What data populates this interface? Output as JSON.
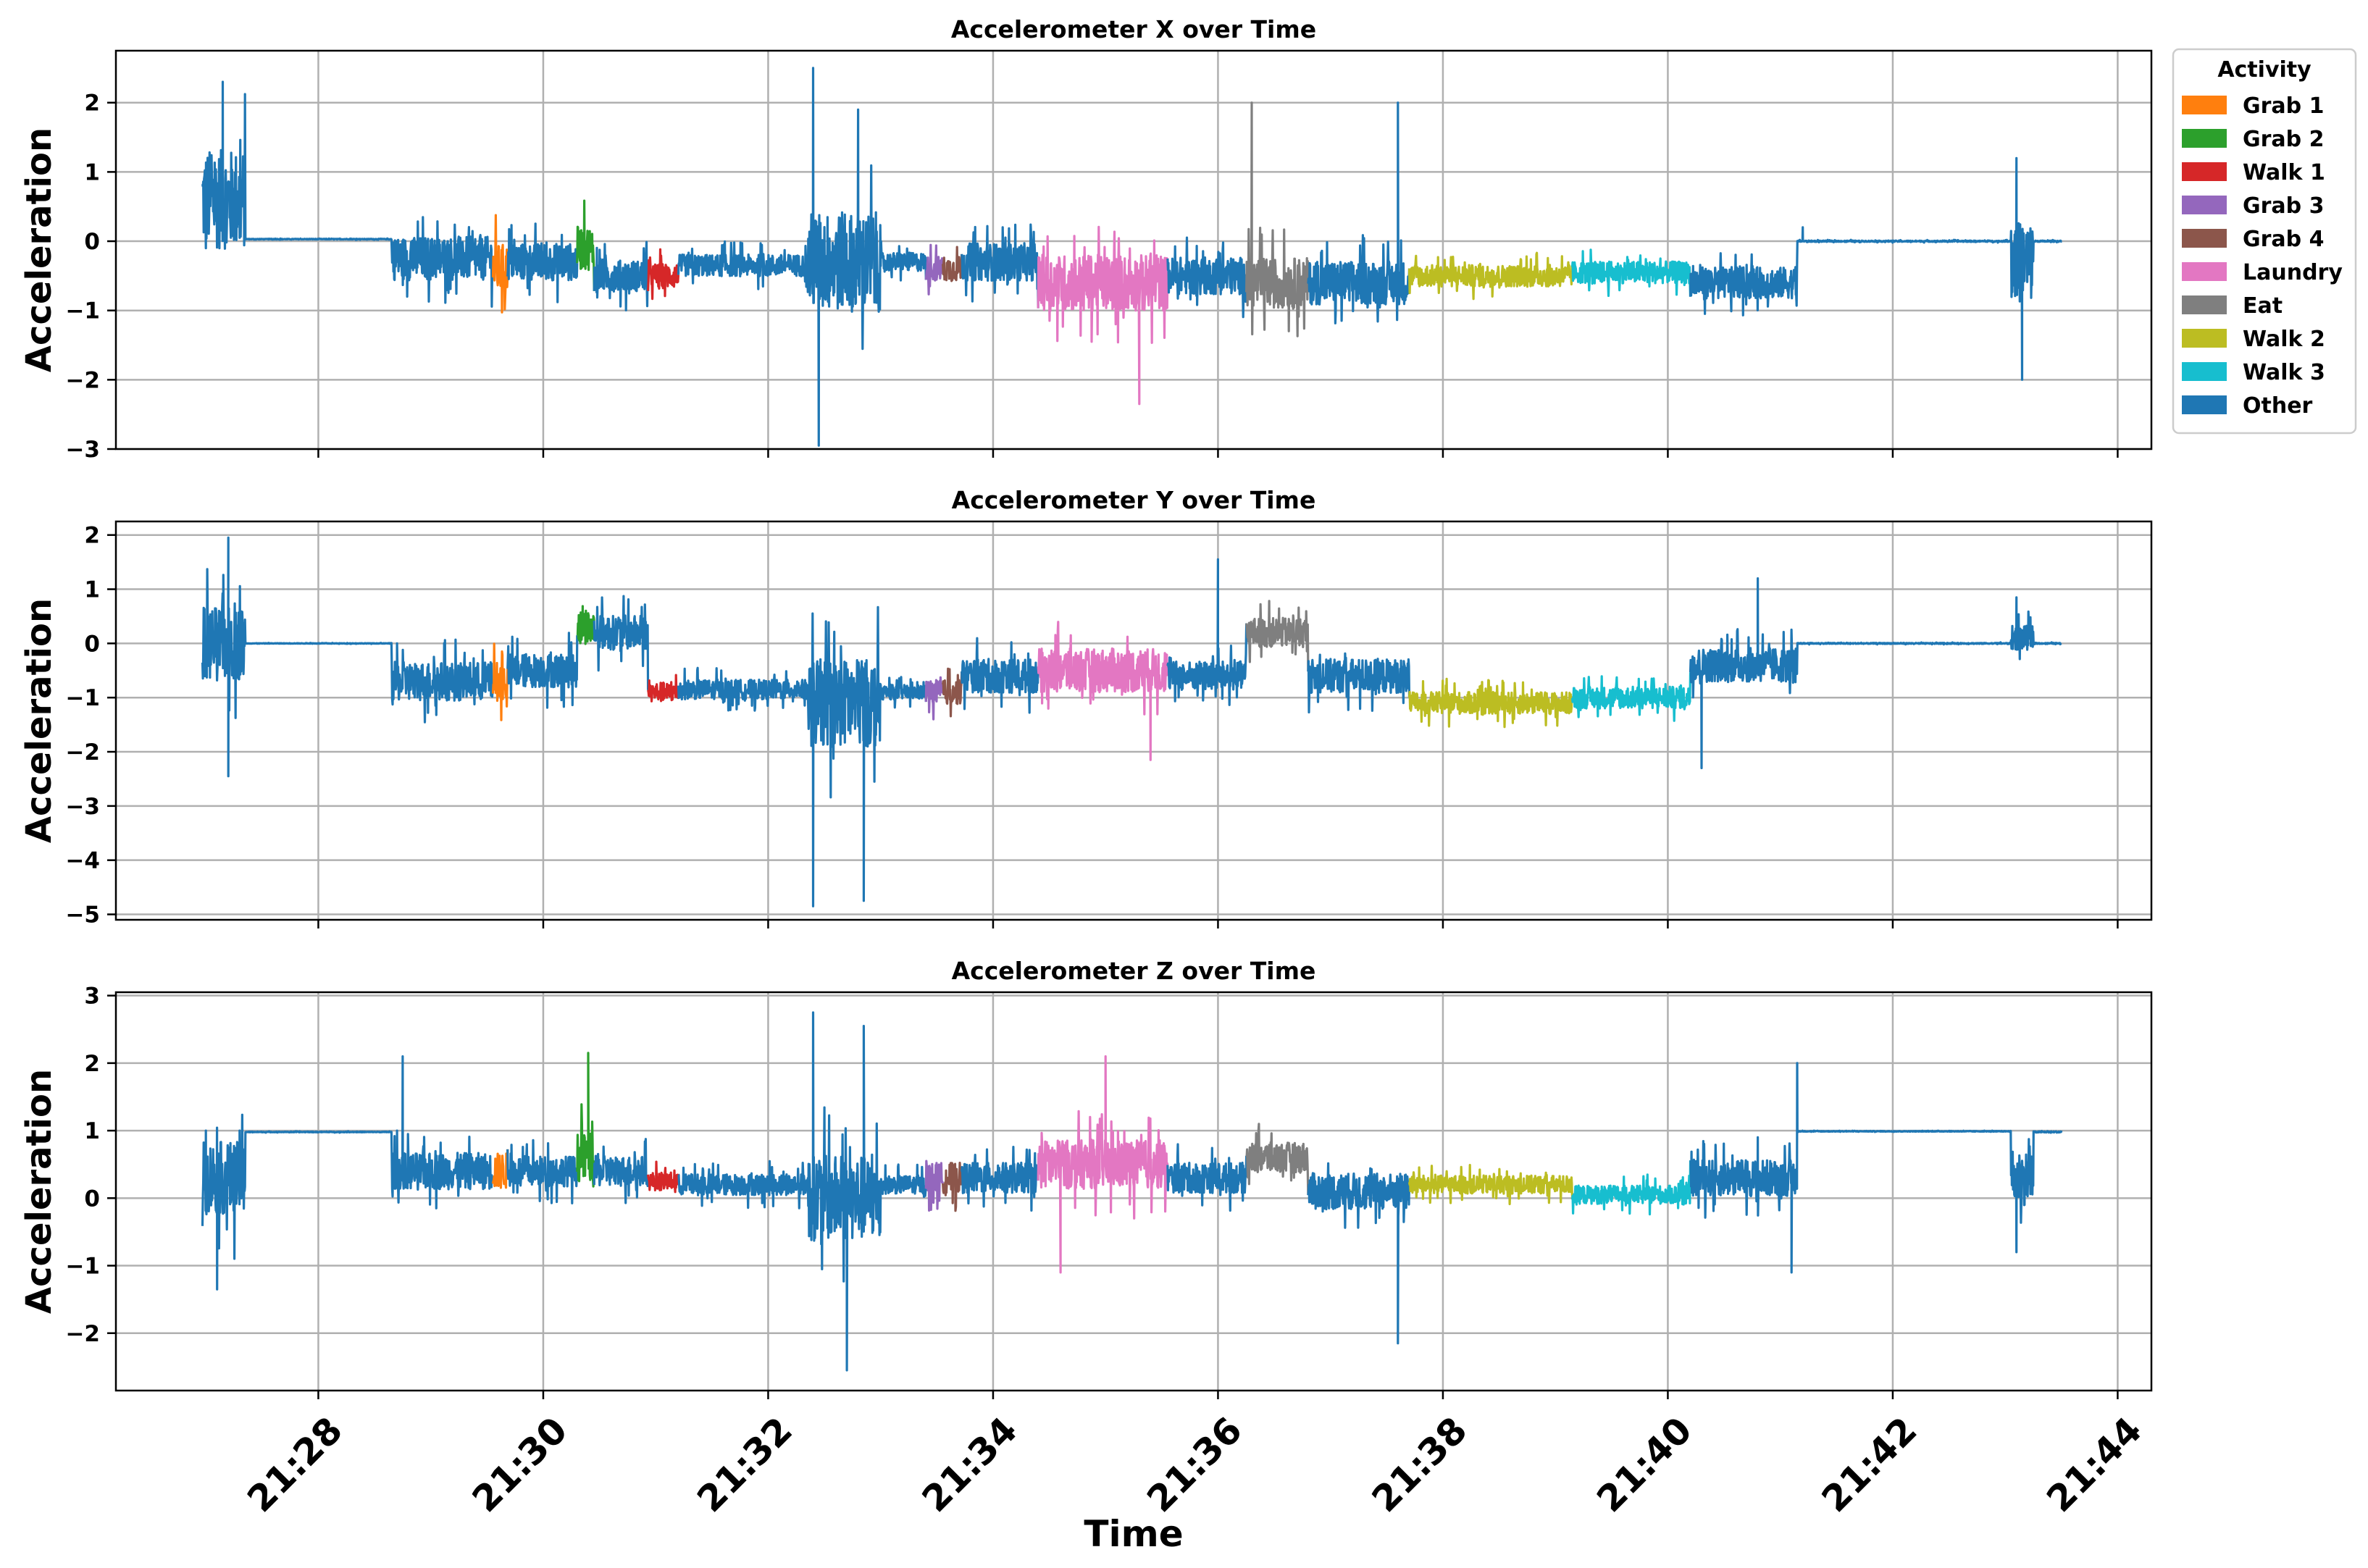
{
  "chart_data": {
    "type": "line",
    "xlabel": "Time",
    "x_tick_labels": [
      "21:28",
      "21:30",
      "21:32",
      "21:34",
      "21:36",
      "21:38",
      "21:40",
      "21:42",
      "21:44"
    ],
    "x_tick_minutes": [
      28,
      30,
      32,
      34,
      36,
      38,
      40,
      42,
      44
    ],
    "x_range_minutes": [
      26.2,
      44.3
    ],
    "legend": {
      "title": "Activity",
      "placement": "outside-top-right",
      "entries": [
        {
          "label": "Grab 1",
          "color": "#ff7f0e"
        },
        {
          "label": "Grab 2",
          "color": "#2ca02c"
        },
        {
          "label": "Walk 1",
          "color": "#d62728"
        },
        {
          "label": "Grab 3",
          "color": "#9467bd"
        },
        {
          "label": "Grab 4",
          "color": "#8c564b"
        },
        {
          "label": "Laundry",
          "color": "#e377c2"
        },
        {
          "label": "Eat",
          "color": "#7f7f7f"
        },
        {
          "label": "Walk 2",
          "color": "#bcbd22"
        },
        {
          "label": "Walk 3",
          "color": "#17becf"
        },
        {
          "label": "Other",
          "color": "#1f77b4"
        }
      ]
    },
    "activity_intervals_minutes": [
      {
        "label": "Grab 1",
        "start": 29.55,
        "end": 29.68
      },
      {
        "label": "Grab 2",
        "start": 30.3,
        "end": 30.45
      },
      {
        "label": "Walk 1",
        "start": 30.93,
        "end": 31.2
      },
      {
        "label": "Grab 3",
        "start": 33.4,
        "end": 33.55
      },
      {
        "label": "Grab 4",
        "start": 33.55,
        "end": 33.72
      },
      {
        "label": "Laundry",
        "start": 34.4,
        "end": 35.55
      },
      {
        "label": "Eat",
        "start": 36.25,
        "end": 36.8
      },
      {
        "label": "Walk 2",
        "start": 37.7,
        "end": 39.15
      },
      {
        "label": "Walk 3",
        "start": 39.15,
        "end": 40.2
      }
    ],
    "panels": [
      {
        "title": "Accelerometer X over Time",
        "ylabel": "Acceleration",
        "ylim": [
          -3.0,
          2.75
        ],
        "yticks": [
          2,
          1,
          0,
          -1,
          -2,
          -3
        ],
        "ytick_labels": [
          "2",
          "1",
          "0",
          "−1",
          "−2",
          "−3"
        ],
        "series_samples": [
          {
            "t": 27.0,
            "v": -0.1
          },
          {
            "t": 27.15,
            "v": 2.3
          },
          {
            "t": 27.3,
            "v": 0.05
          },
          {
            "t": 28.7,
            "v": 0.0
          },
          {
            "t": 29.0,
            "v": -0.3
          },
          {
            "t": 29.6,
            "v": -0.4
          },
          {
            "t": 30.4,
            "v": -0.2
          },
          {
            "t": 31.1,
            "v": -0.5
          },
          {
            "t": 31.8,
            "v": -0.35
          },
          {
            "t": 32.4,
            "v": 2.5
          },
          {
            "t": 32.45,
            "v": -2.95
          },
          {
            "t": 32.8,
            "v": 1.9
          },
          {
            "t": 33.6,
            "v": -0.4
          },
          {
            "t": 34.9,
            "v": -0.6
          },
          {
            "t": 35.3,
            "v": -2.35
          },
          {
            "t": 36.3,
            "v": 2.0
          },
          {
            "t": 36.5,
            "v": -0.5
          },
          {
            "t": 37.6,
            "v": 2.0
          },
          {
            "t": 38.4,
            "v": -0.5
          },
          {
            "t": 39.6,
            "v": -0.45
          },
          {
            "t": 40.5,
            "v": -0.6
          },
          {
            "t": 41.2,
            "v": 0.2
          },
          {
            "t": 41.5,
            "v": 0.0
          },
          {
            "t": 43.1,
            "v": 1.2
          },
          {
            "t": 43.15,
            "v": -2.0
          },
          {
            "t": 43.5,
            "v": 0.0
          }
        ]
      },
      {
        "title": "Accelerometer Y over Time",
        "ylabel": "Acceleration",
        "ylim": [
          -5.1,
          2.25
        ],
        "yticks": [
          2,
          1,
          0,
          -1,
          -2,
          -3,
          -4,
          -5
        ],
        "ytick_labels": [
          "2",
          "1",
          "0",
          "−1",
          "−2",
          "−3",
          "−4",
          "−5"
        ],
        "series_samples": [
          {
            "t": 27.0,
            "v": 0.0
          },
          {
            "t": 27.2,
            "v": 1.95
          },
          {
            "t": 27.2,
            "v": -2.45
          },
          {
            "t": 28.7,
            "v": 0.0
          },
          {
            "t": 29.0,
            "v": -0.9
          },
          {
            "t": 29.6,
            "v": -0.8
          },
          {
            "t": 30.4,
            "v": 0.5
          },
          {
            "t": 31.1,
            "v": -1.0
          },
          {
            "t": 31.8,
            "v": -1.0
          },
          {
            "t": 32.4,
            "v": -4.85
          },
          {
            "t": 32.85,
            "v": -4.75
          },
          {
            "t": 33.5,
            "v": -0.9
          },
          {
            "t": 34.9,
            "v": -0.6
          },
          {
            "t": 35.4,
            "v": -2.15
          },
          {
            "t": 36.0,
            "v": 1.55
          },
          {
            "t": 36.5,
            "v": 0.3
          },
          {
            "t": 37.6,
            "v": -0.8
          },
          {
            "t": 38.4,
            "v": -1.1
          },
          {
            "t": 39.6,
            "v": -1.0
          },
          {
            "t": 40.3,
            "v": -2.3
          },
          {
            "t": 40.8,
            "v": 1.2
          },
          {
            "t": 41.3,
            "v": 0.0
          },
          {
            "t": 43.1,
            "v": 0.85
          },
          {
            "t": 43.5,
            "v": 0.0
          }
        ]
      },
      {
        "title": "Accelerometer Z over Time",
        "ylabel": "Acceleration",
        "ylim": [
          -2.85,
          3.05
        ],
        "yticks": [
          3,
          2,
          1,
          0,
          -1,
          -2
        ],
        "ytick_labels": [
          "3",
          "2",
          "1",
          "0",
          "−1",
          "−2"
        ],
        "series_samples": [
          {
            "t": 27.0,
            "v": 1.0
          },
          {
            "t": 27.1,
            "v": -1.35
          },
          {
            "t": 27.3,
            "v": 1.0
          },
          {
            "t": 28.7,
            "v": 1.0
          },
          {
            "t": 28.75,
            "v": 2.1
          },
          {
            "t": 29.0,
            "v": 0.35
          },
          {
            "t": 30.4,
            "v": 2.15
          },
          {
            "t": 31.1,
            "v": 0.25
          },
          {
            "t": 31.8,
            "v": 0.2
          },
          {
            "t": 32.4,
            "v": 2.75
          },
          {
            "t": 32.7,
            "v": -2.55
          },
          {
            "t": 32.85,
            "v": 2.55
          },
          {
            "t": 33.6,
            "v": 0.3
          },
          {
            "t": 34.6,
            "v": -1.1
          },
          {
            "t": 35.0,
            "v": 2.1
          },
          {
            "t": 36.5,
            "v": 0.6
          },
          {
            "t": 37.6,
            "v": -2.15
          },
          {
            "t": 38.4,
            "v": 0.25
          },
          {
            "t": 39.6,
            "v": 0.1
          },
          {
            "t": 40.8,
            "v": 0.9
          },
          {
            "t": 41.1,
            "v": -1.1
          },
          {
            "t": 41.15,
            "v": 2.0
          },
          {
            "t": 41.3,
            "v": 1.0
          },
          {
            "t": 43.1,
            "v": -0.8
          },
          {
            "t": 43.5,
            "v": 1.0
          }
        ]
      }
    ]
  }
}
